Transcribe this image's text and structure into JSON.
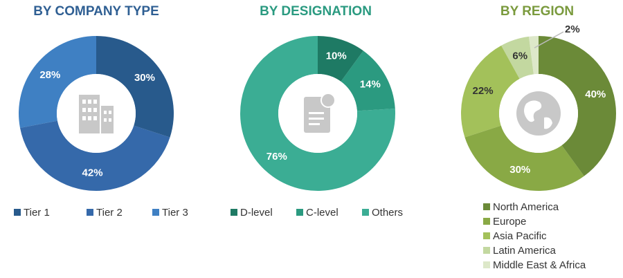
{
  "chart_data": [
    {
      "type": "pie",
      "title": "BY COMPANY TYPE",
      "title_color": "#2f5f93",
      "categories": [
        "Tier 1",
        "Tier 2",
        "Tier 3"
      ],
      "values": [
        30,
        42,
        28
      ],
      "value_labels": [
        "30%",
        "42%",
        "28%"
      ],
      "colors": [
        "#285a8c",
        "#3569aa",
        "#3f80c3"
      ]
    },
    {
      "type": "pie",
      "title": "BY DESIGNATION",
      "title_color": "#2a9a80",
      "categories": [
        "D-level",
        "C-level",
        "Others"
      ],
      "values": [
        10,
        14,
        76
      ],
      "value_labels": [
        "10%",
        "14%",
        "76%"
      ],
      "colors": [
        "#1e7a64",
        "#2b9a80",
        "#3bad94"
      ]
    },
    {
      "type": "pie",
      "title": "BY REGION",
      "title_color": "#7a9a3d",
      "categories": [
        "North America",
        "Europe",
        "Asia Pacific",
        "Latin America",
        "Middle East & Africa"
      ],
      "values": [
        40,
        30,
        22,
        6,
        2
      ],
      "value_labels": [
        "40%",
        "30%",
        "22%",
        "6%",
        "2%"
      ],
      "colors": [
        "#6b8a38",
        "#89a945",
        "#a3c15a",
        "#c3d8a0",
        "#dde8c9"
      ]
    }
  ]
}
